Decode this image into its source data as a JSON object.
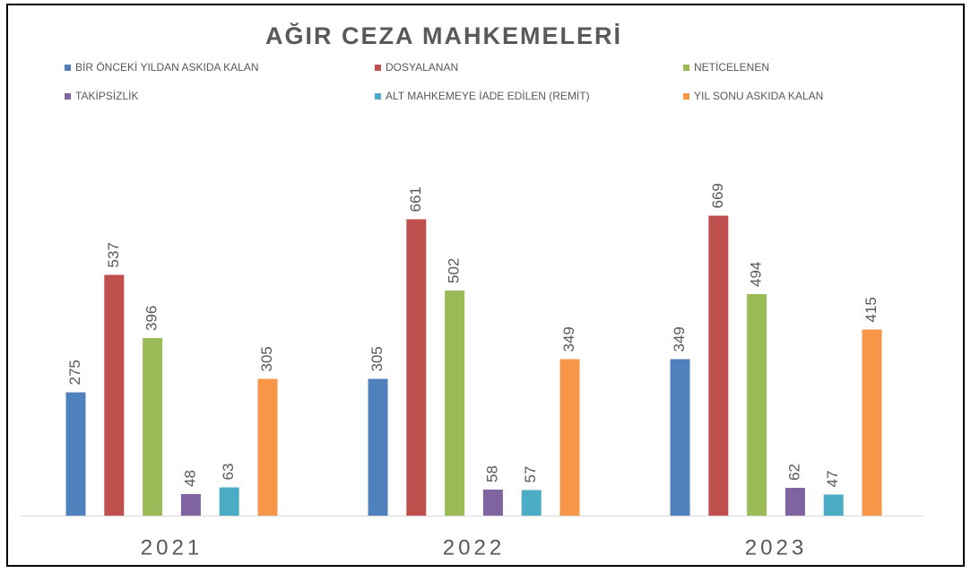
{
  "chart_data": {
    "type": "bar",
    "title": "AĞIR CEZA MAHKEMELERİ",
    "categories": [
      "2021",
      "2022",
      "2023"
    ],
    "series": [
      {
        "name": "BİR ÖNCEKİ YILDAN ASKIDA KALAN",
        "color": "#4f81bd",
        "values": [
          275,
          305,
          349
        ]
      },
      {
        "name": "DOSYALANAN",
        "color": "#c0504d",
        "values": [
          537,
          661,
          669
        ]
      },
      {
        "name": "NETİCELENEN",
        "color": "#9bbb59",
        "values": [
          396,
          502,
          494
        ]
      },
      {
        "name": "TAKİPSİZLİK",
        "color": "#8064a2",
        "values": [
          48,
          58,
          62
        ]
      },
      {
        "name": "ALT MAHKEMEYE İADE EDİLEN (REMİT)",
        "color": "#4bacc6",
        "values": [
          63,
          57,
          47
        ]
      },
      {
        "name": "YIL SONU ASKIDA KALAN",
        "color": "#f79646",
        "values": [
          305,
          349,
          415
        ]
      }
    ]
  }
}
